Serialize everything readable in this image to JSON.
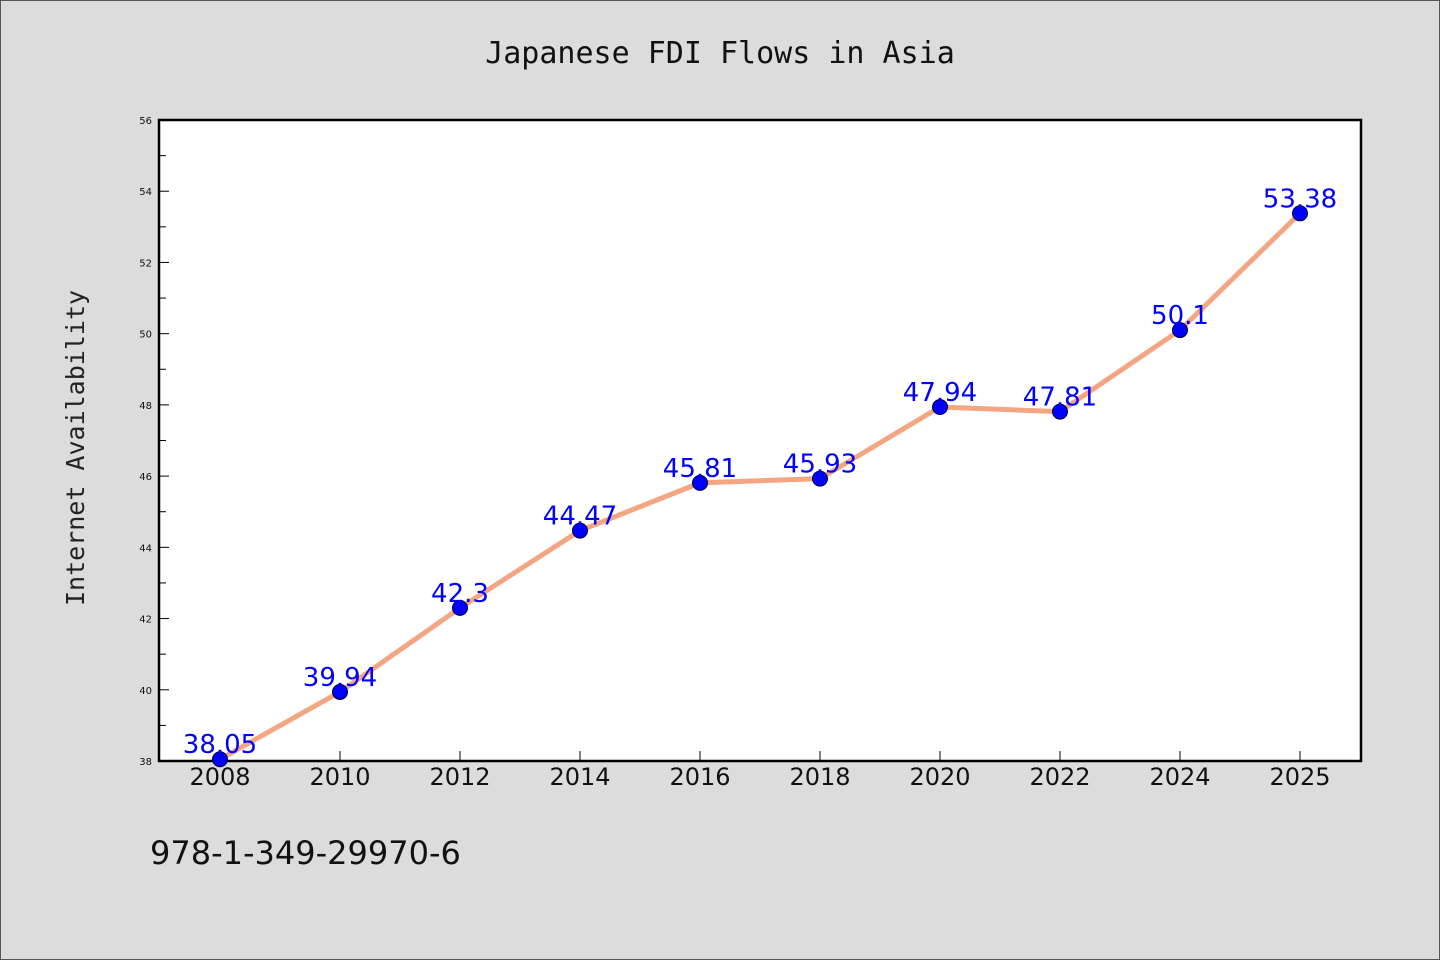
{
  "chart_data": {
    "type": "line",
    "title": "Japanese FDI Flows in Asia",
    "xlabel": "",
    "ylabel": "Internet Availability",
    "categories": [
      "2008",
      "2010",
      "2012",
      "2014",
      "2016",
      "2018",
      "2020",
      "2022",
      "2024",
      "2025"
    ],
    "series": [
      {
        "values": [
          38.05,
          39.94,
          42.3,
          44.47,
          45.81,
          45.93,
          47.94,
          47.81,
          50.1,
          53.38
        ],
        "labels": [
          "38.05",
          "39.94",
          "42.3",
          "44.47",
          "45.81",
          "45.93",
          "47.94",
          "47.81",
          "50.1",
          "53.38"
        ]
      }
    ],
    "ylim": [
      38,
      56
    ],
    "yticks": [
      "38",
      "40",
      "42",
      "44",
      "46",
      "48",
      "50",
      "52",
      "54",
      "56"
    ],
    "grid": false,
    "legend": "none",
    "colors": {
      "line": "#f4a582",
      "marker": "#0000ff",
      "label": "#0000ff"
    }
  },
  "footer": {
    "isbn": "978-1-349-29970-6"
  }
}
